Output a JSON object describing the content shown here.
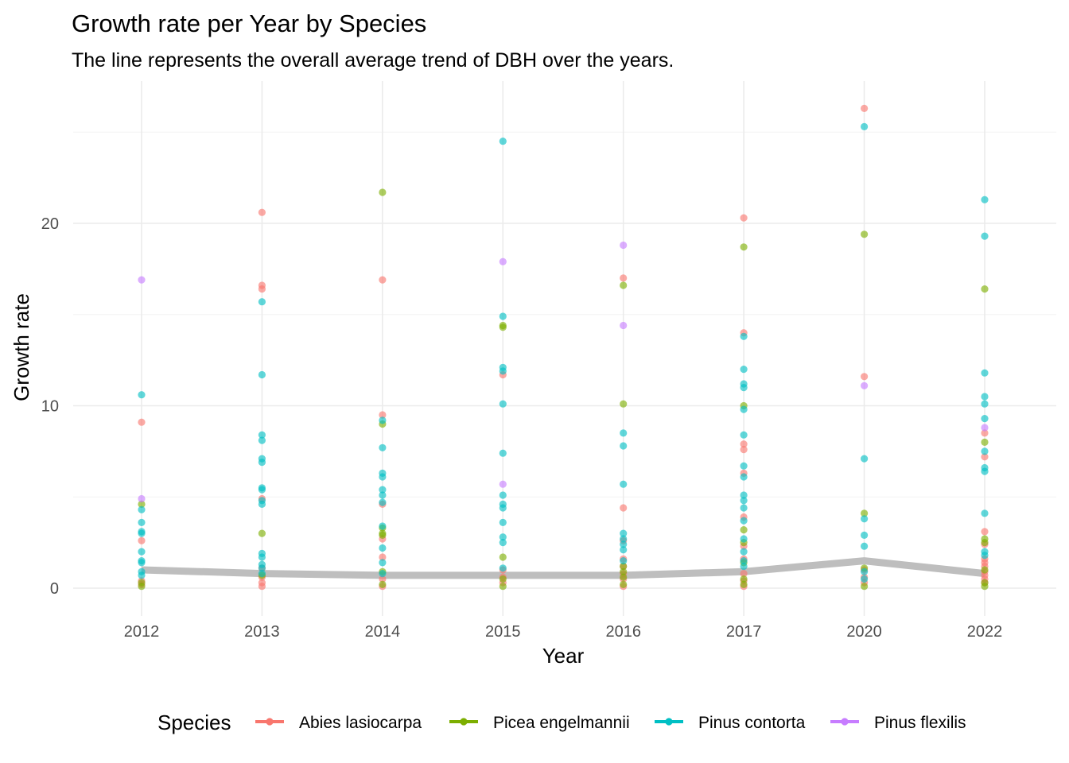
{
  "chart_data": {
    "type": "scatter",
    "title": "Growth rate per Year by Species",
    "subtitle": "The line represents the overall average trend of DBH over the years.",
    "xlabel": "Year",
    "ylabel": "Growth rate",
    "categories": [
      "2012",
      "2013",
      "2014",
      "2015",
      "2016",
      "2017",
      "2020",
      "2022"
    ],
    "ylim": [
      -1.4,
      27.3
    ],
    "yticks": [
      0,
      10,
      20
    ],
    "grid": true,
    "legend": {
      "title": "Species",
      "position": "bottom"
    },
    "series": [
      {
        "name": "Abies lasiocarpa",
        "color": "#F8766D",
        "points": [
          [
            "2012",
            9.1
          ],
          [
            "2012",
            2.6
          ],
          [
            "2012",
            0.4
          ],
          [
            "2012",
            0.2
          ],
          [
            "2013",
            20.6
          ],
          [
            "2013",
            16.6
          ],
          [
            "2013",
            16.4
          ],
          [
            "2013",
            4.9
          ],
          [
            "2013",
            1.1
          ],
          [
            "2013",
            0.6
          ],
          [
            "2013",
            0.3
          ],
          [
            "2013",
            0.1
          ],
          [
            "2014",
            16.9
          ],
          [
            "2014",
            9.5
          ],
          [
            "2014",
            4.6
          ],
          [
            "2014",
            2.7
          ],
          [
            "2014",
            1.7
          ],
          [
            "2014",
            0.5
          ],
          [
            "2014",
            0.1
          ],
          [
            "2015",
            11.7
          ],
          [
            "2015",
            1.0
          ],
          [
            "2015",
            0.6
          ],
          [
            "2015",
            0.3
          ],
          [
            "2016",
            17.0
          ],
          [
            "2016",
            4.4
          ],
          [
            "2016",
            2.6
          ],
          [
            "2016",
            1.6
          ],
          [
            "2016",
            1.2
          ],
          [
            "2016",
            0.8
          ],
          [
            "2016",
            0.5
          ],
          [
            "2016",
            0.1
          ],
          [
            "2017",
            20.3
          ],
          [
            "2017",
            14.0
          ],
          [
            "2017",
            7.9
          ],
          [
            "2017",
            7.6
          ],
          [
            "2017",
            6.3
          ],
          [
            "2017",
            3.9
          ],
          [
            "2017",
            2.3
          ],
          [
            "2017",
            1.6
          ],
          [
            "2017",
            0.8
          ],
          [
            "2017",
            0.4
          ],
          [
            "2017",
            0.1
          ],
          [
            "2020",
            26.3
          ],
          [
            "2020",
            11.6
          ],
          [
            "2020",
            1.0
          ],
          [
            "2020",
            0.6
          ],
          [
            "2020",
            0.3
          ],
          [
            "2022",
            8.5
          ],
          [
            "2022",
            7.2
          ],
          [
            "2022",
            3.1
          ],
          [
            "2022",
            2.4
          ],
          [
            "2022",
            1.6
          ],
          [
            "2022",
            1.4
          ],
          [
            "2022",
            1.2
          ],
          [
            "2022",
            0.9
          ],
          [
            "2022",
            0.7
          ],
          [
            "2022",
            0.5
          ],
          [
            "2022",
            0.3
          ]
        ]
      },
      {
        "name": "Picea engelmannii",
        "color": "#7CAE00",
        "points": [
          [
            "2012",
            4.6
          ],
          [
            "2012",
            0.3
          ],
          [
            "2012",
            0.1
          ],
          [
            "2013",
            3.0
          ],
          [
            "2013",
            0.7
          ],
          [
            "2014",
            21.7
          ],
          [
            "2014",
            9.0
          ],
          [
            "2014",
            3.3
          ],
          [
            "2014",
            3.0
          ],
          [
            "2014",
            2.9
          ],
          [
            "2014",
            0.9
          ],
          [
            "2014",
            0.2
          ],
          [
            "2015",
            14.4
          ],
          [
            "2015",
            14.3
          ],
          [
            "2015",
            1.7
          ],
          [
            "2015",
            0.5
          ],
          [
            "2015",
            0.1
          ],
          [
            "2016",
            16.6
          ],
          [
            "2016",
            10.1
          ],
          [
            "2016",
            1.2
          ],
          [
            "2016",
            0.9
          ],
          [
            "2016",
            0.6
          ],
          [
            "2016",
            0.2
          ],
          [
            "2017",
            18.7
          ],
          [
            "2017",
            10.0
          ],
          [
            "2017",
            3.2
          ],
          [
            "2017",
            2.5
          ],
          [
            "2017",
            1.4
          ],
          [
            "2017",
            0.5
          ],
          [
            "2017",
            0.2
          ],
          [
            "2020",
            19.4
          ],
          [
            "2020",
            4.1
          ],
          [
            "2020",
            1.1
          ],
          [
            "2020",
            0.1
          ],
          [
            "2022",
            16.4
          ],
          [
            "2022",
            8.0
          ],
          [
            "2022",
            2.7
          ],
          [
            "2022",
            2.5
          ],
          [
            "2022",
            1.0
          ],
          [
            "2022",
            0.3
          ],
          [
            "2022",
            0.1
          ]
        ]
      },
      {
        "name": "Pinus contorta",
        "color": "#00BFC4",
        "points": [
          [
            "2012",
            10.6
          ],
          [
            "2012",
            4.3
          ],
          [
            "2012",
            3.6
          ],
          [
            "2012",
            3.1
          ],
          [
            "2012",
            3.0
          ],
          [
            "2012",
            2.0
          ],
          [
            "2012",
            1.5
          ],
          [
            "2012",
            1.4
          ],
          [
            "2012",
            0.9
          ],
          [
            "2012",
            0.7
          ],
          [
            "2013",
            15.7
          ],
          [
            "2013",
            11.7
          ],
          [
            "2013",
            8.4
          ],
          [
            "2013",
            8.1
          ],
          [
            "2013",
            7.1
          ],
          [
            "2013",
            6.9
          ],
          [
            "2013",
            5.5
          ],
          [
            "2013",
            5.4
          ],
          [
            "2013",
            4.8
          ],
          [
            "2013",
            4.6
          ],
          [
            "2013",
            1.9
          ],
          [
            "2013",
            1.7
          ],
          [
            "2013",
            1.3
          ],
          [
            "2013",
            1.1
          ],
          [
            "2013",
            0.8
          ],
          [
            "2014",
            9.2
          ],
          [
            "2014",
            7.7
          ],
          [
            "2014",
            6.3
          ],
          [
            "2014",
            6.1
          ],
          [
            "2014",
            5.4
          ],
          [
            "2014",
            5.1
          ],
          [
            "2014",
            4.7
          ],
          [
            "2014",
            3.4
          ],
          [
            "2014",
            2.2
          ],
          [
            "2014",
            1.4
          ],
          [
            "2014",
            0.8
          ],
          [
            "2015",
            24.5
          ],
          [
            "2015",
            14.9
          ],
          [
            "2015",
            12.1
          ],
          [
            "2015",
            11.9
          ],
          [
            "2015",
            10.1
          ],
          [
            "2015",
            7.4
          ],
          [
            "2015",
            5.1
          ],
          [
            "2015",
            4.6
          ],
          [
            "2015",
            4.4
          ],
          [
            "2015",
            3.6
          ],
          [
            "2015",
            2.8
          ],
          [
            "2015",
            2.5
          ],
          [
            "2015",
            1.1
          ],
          [
            "2016",
            8.5
          ],
          [
            "2016",
            7.8
          ],
          [
            "2016",
            5.7
          ],
          [
            "2016",
            3.0
          ],
          [
            "2016",
            2.7
          ],
          [
            "2016",
            2.4
          ],
          [
            "2016",
            2.1
          ],
          [
            "2016",
            1.5
          ],
          [
            "2017",
            13.8
          ],
          [
            "2017",
            12.0
          ],
          [
            "2017",
            11.2
          ],
          [
            "2017",
            11.0
          ],
          [
            "2017",
            9.8
          ],
          [
            "2017",
            8.4
          ],
          [
            "2017",
            6.7
          ],
          [
            "2017",
            6.1
          ],
          [
            "2017",
            5.1
          ],
          [
            "2017",
            4.8
          ],
          [
            "2017",
            4.4
          ],
          [
            "2017",
            3.7
          ],
          [
            "2017",
            2.7
          ],
          [
            "2017",
            2.0
          ],
          [
            "2017",
            1.5
          ],
          [
            "2017",
            1.2
          ],
          [
            "2020",
            25.3
          ],
          [
            "2020",
            7.1
          ],
          [
            "2020",
            3.8
          ],
          [
            "2020",
            2.9
          ],
          [
            "2020",
            2.3
          ],
          [
            "2020",
            0.9
          ],
          [
            "2020",
            0.5
          ],
          [
            "2022",
            21.3
          ],
          [
            "2022",
            19.3
          ],
          [
            "2022",
            11.8
          ],
          [
            "2022",
            10.5
          ],
          [
            "2022",
            10.1
          ],
          [
            "2022",
            9.3
          ],
          [
            "2022",
            7.5
          ],
          [
            "2022",
            6.6
          ],
          [
            "2022",
            6.4
          ],
          [
            "2022",
            4.1
          ],
          [
            "2022",
            2.0
          ],
          [
            "2022",
            1.8
          ]
        ]
      },
      {
        "name": "Pinus flexilis",
        "color": "#C77CFF",
        "points": [
          [
            "2012",
            16.9
          ],
          [
            "2012",
            4.9
          ],
          [
            "2015",
            17.9
          ],
          [
            "2015",
            5.7
          ],
          [
            "2016",
            18.8
          ],
          [
            "2016",
            14.4
          ],
          [
            "2020",
            11.1
          ],
          [
            "2022",
            8.8
          ]
        ]
      }
    ],
    "trend_line": {
      "color": "#bebebe",
      "values": [
        1.0,
        0.8,
        0.7,
        0.7,
        0.7,
        0.9,
        1.5,
        0.8
      ]
    }
  }
}
